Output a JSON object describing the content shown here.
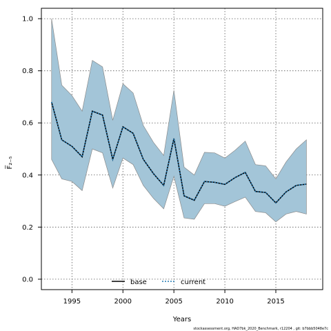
{
  "chart_data": {
    "type": "line",
    "xlabel": "Years",
    "ylabel": "F̅₂₋₅",
    "xlim": [
      1992.0,
      2019.6
    ],
    "ylim": [
      -0.04,
      1.04
    ],
    "xticks": [
      1995,
      2000,
      2005,
      2010,
      2015
    ],
    "yticks": [
      0.0,
      0.2,
      0.4,
      0.6,
      0.8,
      1.0
    ],
    "xtick_labels": [
      "1995",
      "2000",
      "2005",
      "2010",
      "2015"
    ],
    "ytick_labels": [
      "0.0",
      "0.2",
      "0.4",
      "0.6",
      "0.8",
      "1.0"
    ],
    "grid": true,
    "legend_position": "bottom-center",
    "x": [
      1993,
      1994,
      1995,
      1996,
      1997,
      1998,
      1999,
      2000,
      2001,
      2002,
      2003,
      2004,
      2005,
      2006,
      2007,
      2008,
      2009,
      2010,
      2011,
      2012,
      2013,
      2014,
      2015,
      2016,
      2017,
      2018
    ],
    "band": {
      "color": "#a3c5d8",
      "upper": [
        1.0,
        0.745,
        0.705,
        0.645,
        0.84,
        0.815,
        0.61,
        0.75,
        0.715,
        0.59,
        0.525,
        0.475,
        0.725,
        0.43,
        0.4,
        0.487,
        0.485,
        0.465,
        0.495,
        0.53,
        0.44,
        0.435,
        0.385,
        0.45,
        0.5,
        0.535
      ],
      "lower": [
        0.46,
        0.385,
        0.375,
        0.34,
        0.5,
        0.485,
        0.35,
        0.465,
        0.44,
        0.36,
        0.31,
        0.27,
        0.395,
        0.235,
        0.23,
        0.29,
        0.29,
        0.28,
        0.298,
        0.315,
        0.26,
        0.255,
        0.22,
        0.25,
        0.26,
        0.25
      ]
    },
    "series": [
      {
        "name": "base",
        "color": "#000000",
        "dash": "solid",
        "values": [
          0.68,
          0.535,
          0.51,
          0.47,
          0.645,
          0.63,
          0.46,
          0.585,
          0.56,
          0.46,
          0.405,
          0.36,
          0.54,
          0.32,
          0.303,
          0.375,
          0.372,
          0.364,
          0.39,
          0.41,
          0.337,
          0.333,
          0.293,
          0.335,
          0.36,
          0.365
        ]
      },
      {
        "name": "current",
        "color": "#1f78b4",
        "dash": "dotted",
        "values": [
          0.68,
          0.535,
          0.51,
          0.47,
          0.645,
          0.63,
          0.46,
          0.585,
          0.56,
          0.46,
          0.405,
          0.36,
          0.54,
          0.32,
          0.303,
          0.375,
          0.372,
          0.364,
          0.39,
          0.41,
          0.337,
          0.333,
          0.293,
          0.335,
          0.36,
          0.365
        ]
      }
    ]
  },
  "footer": "stockassessment.org, HAD7bk_2020_Benchmark, r12204 , git: b7bbb5048e7c"
}
